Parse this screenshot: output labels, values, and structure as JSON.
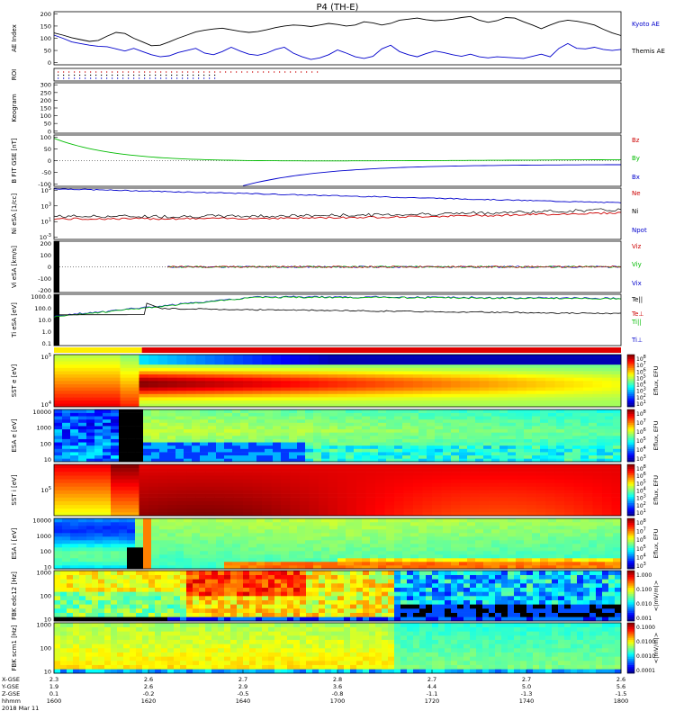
{
  "title": "P4 (TH-E)",
  "chart_data": [
    {
      "type": "line",
      "ylabel": "AE Index",
      "ylim": [
        0,
        200
      ],
      "yticks": [
        "0",
        "50",
        "100",
        "150",
        "200"
      ],
      "series": [
        {
          "name": "Kyoto AE",
          "color": "#000000",
          "values": [
            120,
            112,
            102,
            95,
            88,
            92,
            108,
            122,
            118,
            100,
            86,
            72,
            74,
            86,
            100,
            112,
            124,
            130,
            135,
            138,
            132,
            126,
            122,
            125,
            132,
            140,
            146,
            150,
            148,
            144,
            150,
            156,
            152,
            146,
            150,
            162,
            158,
            150,
            156,
            168,
            172,
            176,
            170,
            166,
            168,
            172,
            178,
            182,
            168,
            160,
            166,
            178,
            176,
            162,
            150,
            136,
            150,
            162,
            168,
            164,
            158,
            150,
            134,
            120,
            110
          ]
        },
        {
          "name": "Themis AE",
          "color": "#0000cc",
          "values": [
            112,
            100,
            86,
            80,
            74,
            70,
            68,
            60,
            52,
            62,
            50,
            38,
            30,
            34,
            46,
            54,
            62,
            44,
            38,
            50,
            66,
            52,
            40,
            36,
            44,
            58,
            66,
            44,
            30,
            20,
            26,
            38,
            56,
            44,
            30,
            24,
            32,
            60,
            74,
            50,
            38,
            30,
            42,
            52,
            46,
            38,
            32,
            40,
            30,
            26,
            30,
            28,
            26,
            24,
            32,
            40,
            30,
            62,
            80,
            62,
            60,
            66,
            58,
            54,
            58
          ]
        }
      ]
    },
    {
      "type": "scatter",
      "ylabel": "ROI",
      "rows": [
        {
          "color": "#cc0000"
        },
        {
          "color": "#000000"
        },
        {
          "color": "#0000cc"
        }
      ]
    },
    {
      "type": "heatmap",
      "ylabel": "Keogram",
      "yticks": [
        "0",
        "50",
        "100",
        "150",
        "200",
        "250",
        "300"
      ]
    },
    {
      "type": "line",
      "ylabel": "B FIT GSE [nT]",
      "ylim": [
        -100,
        100
      ],
      "yticks": [
        "-100",
        "-50",
        "0",
        "50",
        "100"
      ],
      "series": [
        {
          "name": "Bz",
          "color": "#cc0000"
        },
        {
          "name": "By",
          "color": "#00bb00"
        },
        {
          "name": "Bx",
          "color": "#0000cc"
        }
      ]
    },
    {
      "type": "line",
      "ylabel": "Ni eSA [1/cc]",
      "log": true,
      "ylim": [
        -3,
        5
      ],
      "yticks": [
        "10^-3",
        "10^1",
        "10^3",
        "10^5"
      ],
      "series": [
        {
          "name": "Ne",
          "color": "#cc0000"
        },
        {
          "name": "Ni",
          "color": "#000000"
        },
        {
          "name": "Npot",
          "color": "#0000cc"
        }
      ]
    },
    {
      "type": "line",
      "ylabel": "Vi eSA [km/s]",
      "ylim": [
        -300,
        300
      ],
      "yticks": [
        "-200",
        "-100",
        "0",
        "100",
        "200"
      ],
      "series": [
        {
          "name": "Viz",
          "color": "#cc0000"
        },
        {
          "name": "Viy",
          "color": "#00bb00"
        },
        {
          "name": "Vix",
          "color": "#0000cc"
        }
      ]
    },
    {
      "type": "line",
      "ylabel": "Ti eSA [eV]",
      "log": true,
      "yticks": [
        "0.1",
        "1.0",
        "10.0",
        "100.0",
        "1000.0"
      ],
      "series": [
        {
          "name": "Te||",
          "color": "#000000"
        },
        {
          "name": "Te⊥",
          "color": "#cc0000"
        },
        {
          "name": "Ti||",
          "color": "#00bb00"
        },
        {
          "name": "Ti⊥",
          "color": "#0000cc"
        }
      ]
    },
    {
      "type": "heatmap",
      "ylabel": "SST e [eV]",
      "yticks": [
        "10^4",
        "10^5"
      ],
      "colorbar": {
        "label": "Eflux, EFU",
        "ticks": [
          "10^8",
          "10^7",
          "10^6",
          "10^5",
          "10^4",
          "10^3",
          "10^2",
          "10^1"
        ]
      }
    },
    {
      "type": "heatmap",
      "ylabel": "ESA e [eV]",
      "yticks": [
        "10",
        "100",
        "1000",
        "10000"
      ],
      "colorbar": {
        "label": "Eflux, EFU",
        "ticks": [
          "10^8",
          "10^7",
          "10^6",
          "10^5",
          "10^4",
          "10^3"
        ]
      }
    },
    {
      "type": "heatmap",
      "ylabel": "SST i [eV]",
      "yticks": [
        "10^5"
      ],
      "colorbar": {
        "label": "Eflux, EFU",
        "ticks": [
          "10^8",
          "10^6",
          "10^5",
          "10^4",
          "10^3",
          "10^2",
          "10^1"
        ]
      }
    },
    {
      "type": "heatmap",
      "ylabel": "ESA i [eV]",
      "yticks": [
        "10",
        "100",
        "1000",
        "10000"
      ],
      "colorbar": {
        "label": "Eflux, EFU",
        "ticks": [
          "10^8",
          "10^7",
          "10^6",
          "10^5",
          "10^4",
          "10^3"
        ]
      }
    },
    {
      "type": "heatmap",
      "ylabel": "FBK edc12 [Hz]",
      "yticks": [
        "10",
        "100",
        "1000"
      ],
      "colorbar": {
        "label": "<|mV/m|>",
        "ticks": [
          "1.000",
          "0.100",
          "0.010",
          "0.001"
        ]
      }
    },
    {
      "type": "heatmap",
      "ylabel": "FBK scm1 [Hz]",
      "yticks": [
        "10",
        "100",
        "1000"
      ],
      "colorbar": {
        "label": "<|mV/m|>",
        "ticks": [
          "0.1000",
          "0.0100",
          "0.0010",
          "0.0001"
        ]
      }
    }
  ],
  "xaxis": {
    "row_labels": [
      "X-GSE",
      "Y-GSE",
      "Z-GSE",
      "hhmm",
      "2018 Mar 11"
    ],
    "ticks": [
      {
        "x_gse": "2.3",
        "y_gse": "1.9",
        "z_gse": "0.1",
        "time": "1600"
      },
      {
        "x_gse": "2.6",
        "y_gse": "2.6",
        "z_gse": "-0.2",
        "time": "1620"
      },
      {
        "x_gse": "2.7",
        "y_gse": "2.9",
        "z_gse": "-0.5",
        "time": "1640"
      },
      {
        "x_gse": "2.8",
        "y_gse": "3.6",
        "z_gse": "-0.8",
        "time": "1700"
      },
      {
        "x_gse": "2.7",
        "y_gse": "4.4",
        "z_gse": "-1.1",
        "time": "1720"
      },
      {
        "x_gse": "2.7",
        "y_gse": "5.0",
        "z_gse": "-1.3",
        "time": "1740"
      },
      {
        "x_gse": "2.6",
        "y_gse": "5.6",
        "z_gse": "-1.5",
        "time": "1800"
      }
    ]
  }
}
